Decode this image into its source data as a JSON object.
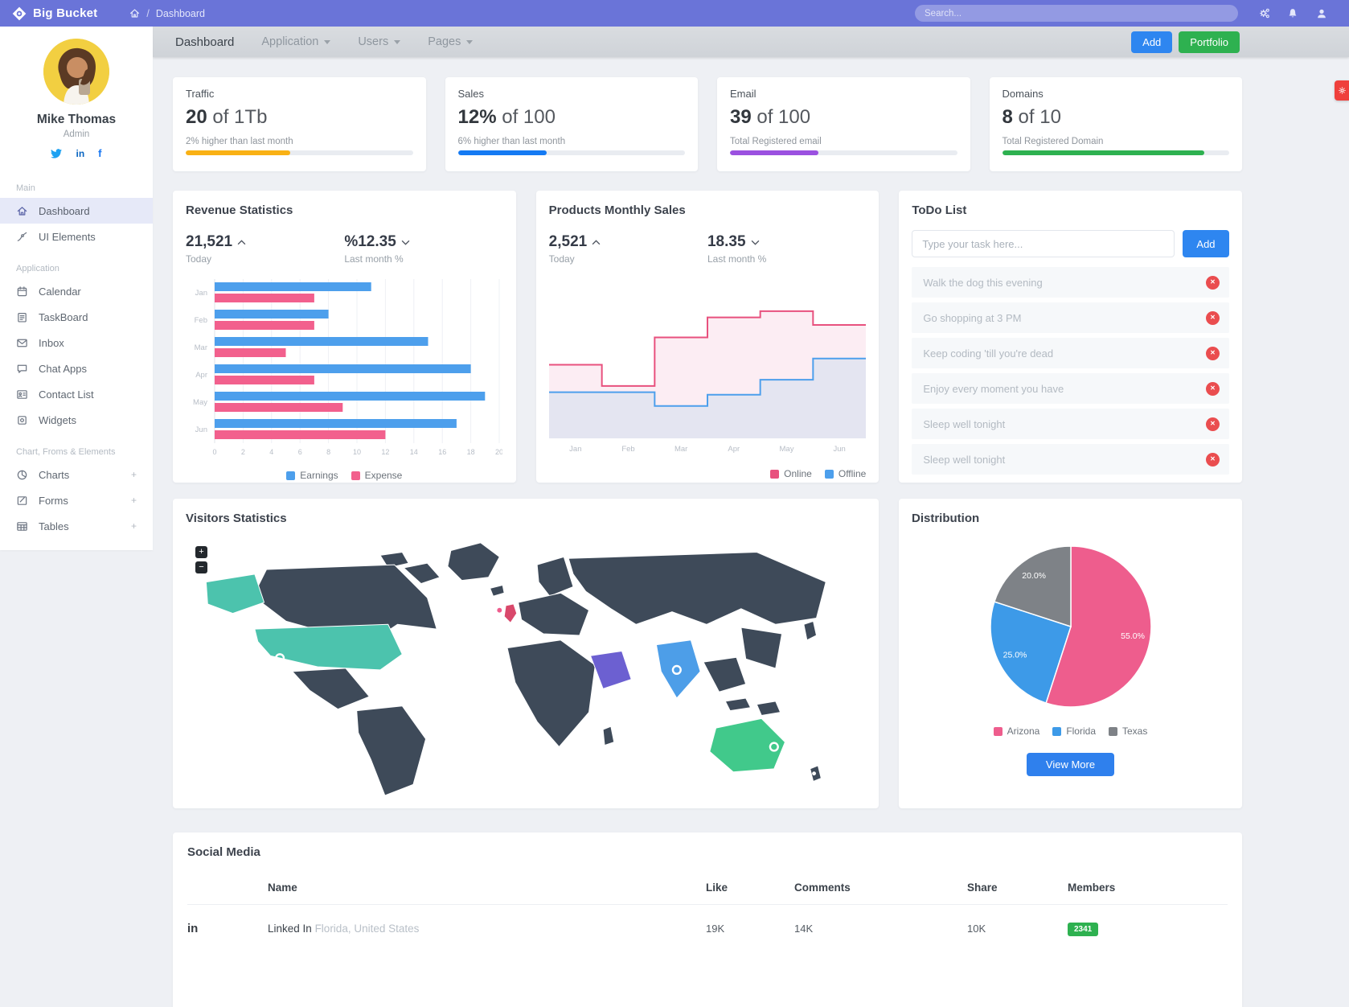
{
  "navbar": {
    "brand": "Big Bucket",
    "breadcrumb_separator": "/",
    "breadcrumb": "Dashboard",
    "search_placeholder": "Search..."
  },
  "subnav": {
    "tabs": [
      {
        "label": "Dashboard",
        "active": true
      },
      {
        "label": "Application",
        "dropdown": true
      },
      {
        "label": "Users",
        "dropdown": true
      },
      {
        "label": "Pages",
        "dropdown": true
      }
    ],
    "add_button": "Add",
    "portfolio_button": "Portfolio"
  },
  "profile": {
    "name": "Mike Thomas",
    "role": "Admin",
    "social": [
      {
        "name": "twitter"
      },
      {
        "name": "linkedin",
        "label": "in"
      },
      {
        "name": "facebook",
        "label": "f"
      }
    ]
  },
  "sidebar": {
    "expand_glyph": "+",
    "sections": [
      {
        "label": "Main",
        "items": [
          {
            "label": "Dashboard",
            "active": true
          },
          {
            "label": "UI Elements"
          }
        ]
      },
      {
        "label": "Application",
        "items": [
          {
            "label": "Calendar"
          },
          {
            "label": "TaskBoard"
          },
          {
            "label": "Inbox"
          },
          {
            "label": "Chat Apps"
          },
          {
            "label": "Contact List"
          },
          {
            "label": "Widgets"
          }
        ]
      },
      {
        "label": "Chart, Froms & Elements",
        "items": [
          {
            "label": "Charts",
            "expandable": true
          },
          {
            "label": "Forms",
            "expandable": true
          },
          {
            "label": "Tables",
            "expandable": true
          }
        ]
      }
    ]
  },
  "stats": [
    {
      "title": "Traffic",
      "value": "20",
      "unit": "of 1Tb",
      "caption": "2% higher than last month",
      "color": "#F9B115",
      "pct": 46
    },
    {
      "title": "Sales",
      "value": "12%",
      "unit": "of 100",
      "caption": "6% higher than last month",
      "color": "#147AF3",
      "pct": 39
    },
    {
      "title": "Email",
      "value": "39",
      "unit": "of 100",
      "caption": "Total Registered email",
      "color": "#9B51E0",
      "pct": 39
    },
    {
      "title": "Domains",
      "value": "8",
      "unit": "of 10",
      "caption": "Total Registered Domain",
      "color": "#2EB150",
      "pct": 89
    }
  ],
  "revenue": {
    "title": "Revenue Statistics",
    "today_value": "21,521",
    "today_label": "Today",
    "month_value": "%12.35",
    "month_label": "Last month %"
  },
  "products": {
    "title": "Products Monthly Sales",
    "today_value": "2,521",
    "today_label": "Today",
    "month_value": "18.35",
    "month_label": "Last month %"
  },
  "todo": {
    "title": "ToDo List",
    "input_placeholder": "Type your task here...",
    "add_button": "Add",
    "delete_glyph": "✕",
    "items": [
      "Walk the dog this evening",
      "Go shopping at 3 PM",
      "Keep coding 'till you're dead",
      "Enjoy every moment you have",
      "Sleep well tonight",
      "Sleep well tonight"
    ]
  },
  "visitors": {
    "title": "Visitors Statistics",
    "zoom_in": "+",
    "zoom_out": "−"
  },
  "distribution": {
    "title": "Distribution",
    "view_more_button": "View More"
  },
  "social": {
    "title": "Social Media",
    "headers": [
      "Name",
      "Like",
      "Comments",
      "Share",
      "Members"
    ],
    "rows": [
      {
        "icon_label": "in",
        "network": "Linked In",
        "location": "Florida, United States",
        "like": "19K",
        "comments": "14K",
        "share": "10K",
        "members": "2341",
        "badge_color": "#2EB150"
      }
    ]
  },
  "chart_data": [
    {
      "id": "revenue",
      "type": "bar",
      "orientation": "horizontal",
      "title": "Revenue Statistics",
      "categories": [
        "Jan",
        "Feb",
        "Mar",
        "Apr",
        "May",
        "Jun"
      ],
      "series": [
        {
          "name": "Earnings",
          "color": "#4D9FEC",
          "values": [
            11,
            8,
            15,
            18,
            19,
            17
          ]
        },
        {
          "name": "Expense",
          "color": "#F2608D",
          "values": [
            7,
            7,
            5,
            7,
            9,
            12
          ]
        }
      ],
      "xlim": [
        0,
        20
      ],
      "xticks": [
        0,
        2,
        4,
        6,
        8,
        10,
        12,
        14,
        16,
        18,
        20
      ],
      "grid": true,
      "legend_position": "bottom"
    },
    {
      "id": "products",
      "type": "area",
      "step": true,
      "title": "Products Monthly Sales",
      "categories": [
        "Jan",
        "Feb",
        "Mar",
        "Apr",
        "May",
        "Jun"
      ],
      "series": [
        {
          "name": "Online",
          "color": "#E8517E",
          "fill": "#FCEDF3",
          "values": [
            5.9,
            4.2,
            8.1,
            9.7,
            10.2,
            9.1
          ]
        },
        {
          "name": "Offline",
          "color": "#4D9FEC",
          "fill": "#E4E5F1",
          "values": [
            3.7,
            3.7,
            2.6,
            3.5,
            4.7,
            6.4
          ]
        }
      ],
      "ylim": [
        0,
        12
      ],
      "grid": false,
      "legend_position": "bottom"
    },
    {
      "id": "distribution",
      "type": "pie",
      "title": "Distribution",
      "labels": [
        "Arizona",
        "Florida",
        "Texas"
      ],
      "values": [
        55.0,
        25.0,
        20.0
      ],
      "slice_labels": [
        "55.0%",
        "25.0%",
        "20.0%"
      ],
      "colors": [
        "#EE5D8D",
        "#3D9AE8",
        "#7E8287"
      ],
      "legend_position": "bottom"
    }
  ]
}
